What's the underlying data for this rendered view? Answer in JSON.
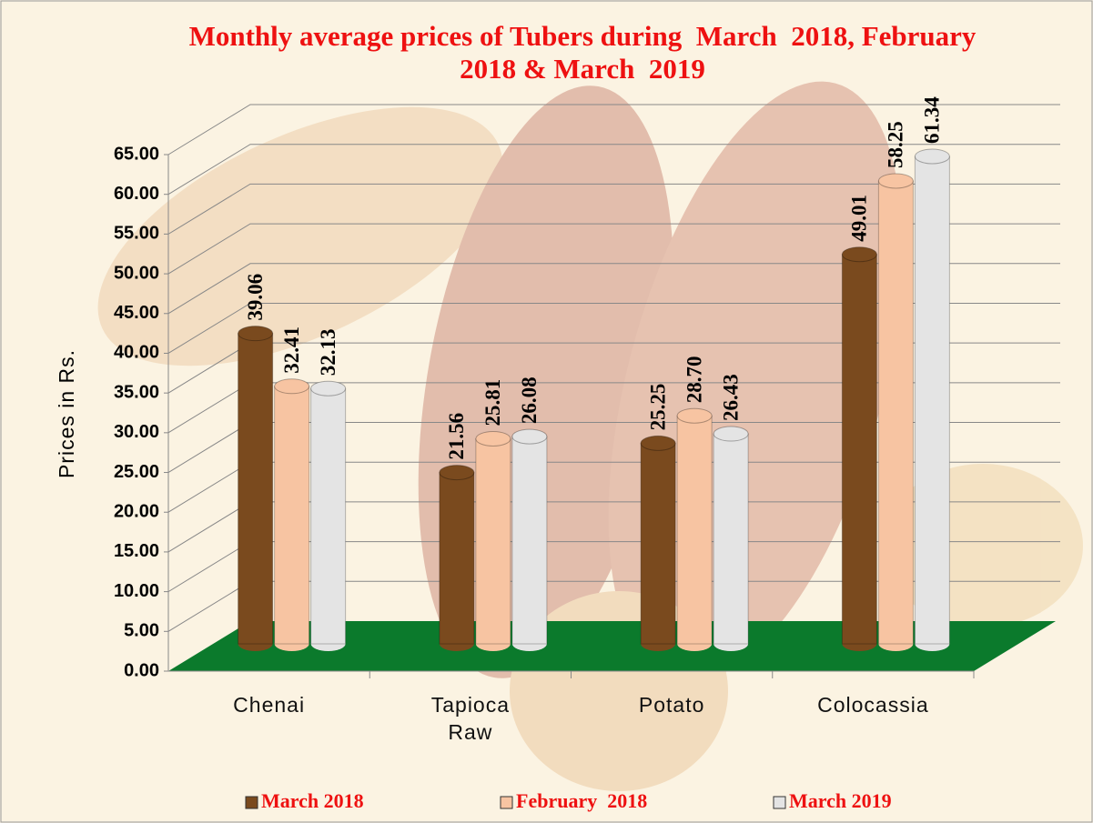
{
  "chart_data": {
    "type": "bar",
    "title": "Monthly average prices of Tubers during  March  2018, February  2018 & March  2019",
    "y_label": "Prices in Rs.",
    "categories": [
      "Chenai",
      "Tapioca Raw",
      "Potato",
      "Colocassia"
    ],
    "series": [
      {
        "name": "March 2018",
        "color": "#7a4a1e",
        "values": [
          39.06,
          21.56,
          25.25,
          49.01
        ],
        "value_labels": [
          "39.06",
          "21.56",
          "25.25",
          "49.01"
        ]
      },
      {
        "name": "February  2018",
        "color": "#f7c4a2",
        "values": [
          32.41,
          25.81,
          28.7,
          58.25
        ],
        "value_labels": [
          "32.41",
          "25.81",
          "28.70",
          "58.25"
        ]
      },
      {
        "name": "March 2019",
        "color": "#e4e4e4",
        "values": [
          32.13,
          26.08,
          26.43,
          61.34
        ],
        "value_labels": [
          "32.13",
          "26.08",
          "26.43",
          "61.34"
        ]
      }
    ],
    "ylim": [
      0,
      65
    ],
    "yticks": [
      {
        "value": 0,
        "label": "0.00"
      },
      {
        "value": 5,
        "label": "5.00"
      },
      {
        "value": 10,
        "label": "10.00"
      },
      {
        "value": 15,
        "label": "15.00"
      },
      {
        "value": 20,
        "label": "20.00"
      },
      {
        "value": 25,
        "label": "25.00"
      },
      {
        "value": 30,
        "label": "30.00"
      },
      {
        "value": 35,
        "label": "35.00"
      },
      {
        "value": 40,
        "label": "40.00"
      },
      {
        "value": 45,
        "label": "45.00"
      },
      {
        "value": 50,
        "label": "50.00"
      },
      {
        "value": 55,
        "label": "55.00"
      },
      {
        "value": 60,
        "label": "60.00"
      },
      {
        "value": 65,
        "label": "65.00"
      }
    ],
    "grid": true,
    "floor_color": "#0b7a2c",
    "legend": "bottom"
  }
}
